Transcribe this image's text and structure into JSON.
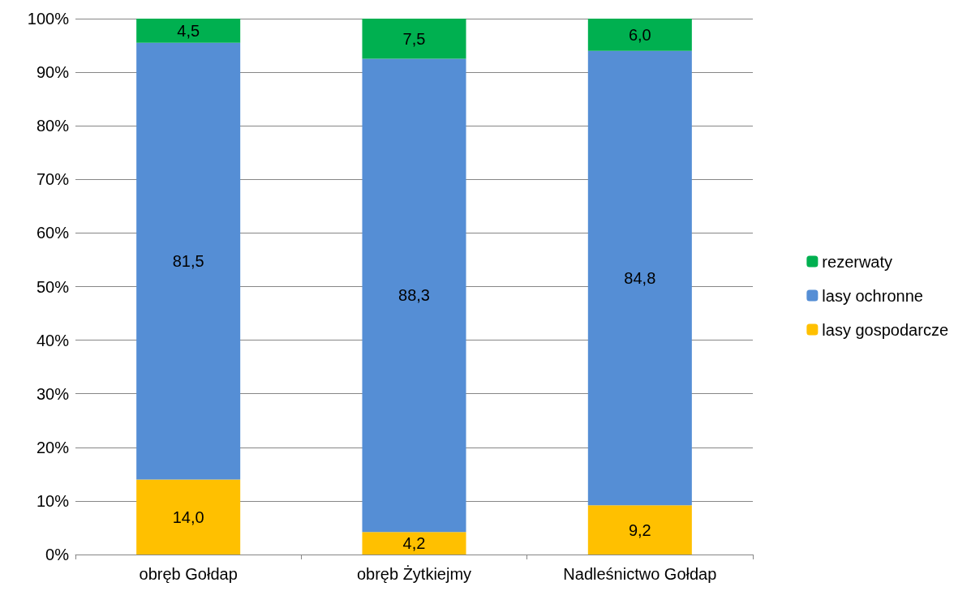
{
  "chart_data": {
    "type": "bar",
    "stacked": true,
    "categories": [
      "obręb Gołdap",
      "obręb Żytkiejmy",
      "Nadleśnictwo Gołdap"
    ],
    "series": [
      {
        "name": "lasy gospodarcze",
        "color": "#ffc000",
        "values": [
          14.0,
          4.2,
          9.2
        ],
        "value_labels": [
          "14,0",
          "4,2",
          "9,2"
        ]
      },
      {
        "name": "lasy ochronne",
        "color": "#558ed5",
        "values": [
          81.5,
          88.3,
          84.8
        ],
        "value_labels": [
          "81,5",
          "88,3",
          "84,8"
        ]
      },
      {
        "name": "rezerwaty",
        "color": "#00b050",
        "values": [
          4.5,
          7.5,
          6.0
        ],
        "value_labels": [
          "4,5",
          "7,5",
          "6,0"
        ]
      }
    ],
    "ylim": [
      0,
      100
    ],
    "yticks": [
      {
        "value": 0,
        "label": "0%"
      },
      {
        "value": 10,
        "label": "10%"
      },
      {
        "value": 20,
        "label": "20%"
      },
      {
        "value": 30,
        "label": "30%"
      },
      {
        "value": 40,
        "label": "40%"
      },
      {
        "value": 50,
        "label": "50%"
      },
      {
        "value": 60,
        "label": "60%"
      },
      {
        "value": 70,
        "label": "70%"
      },
      {
        "value": 80,
        "label": "80%"
      },
      {
        "value": 90,
        "label": "90%"
      },
      {
        "value": 100,
        "label": "100%"
      }
    ],
    "grid": "y",
    "legend": "right"
  }
}
